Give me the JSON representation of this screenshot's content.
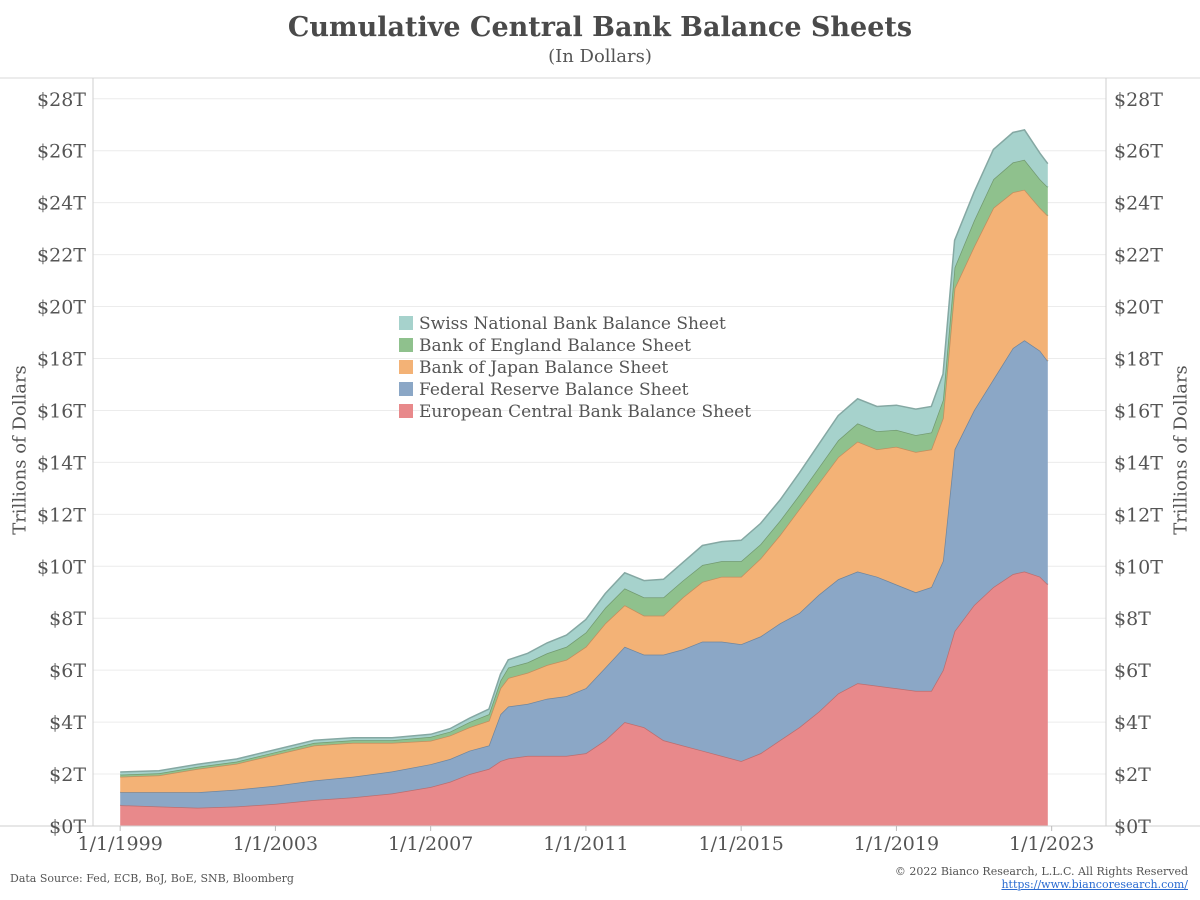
{
  "colors": {
    "ecb": "#e8898b",
    "fed": "#8ba7c6",
    "boj": "#f3b276",
    "boe": "#8fc18d",
    "snb": "#a6d2cc"
  },
  "chart_data": {
    "type": "area",
    "stacked": true,
    "title": "Cumulative Central Bank Balance Sheets",
    "subtitle": "(In Dollars)",
    "ylabel_left": "Trillions of Dollars",
    "ylabel_right": "Trillions of Dollars",
    "ylim": [
      0,
      28.8
    ],
    "yticks": [
      0,
      2,
      4,
      6,
      8,
      10,
      12,
      14,
      16,
      18,
      20,
      22,
      24,
      26,
      28
    ],
    "ytick_labels": [
      "$0T",
      "$2T",
      "$4T",
      "$6T",
      "$8T",
      "$10T",
      "$12T",
      "$14T",
      "$16T",
      "$18T",
      "$20T",
      "$22T",
      "$24T",
      "$26T",
      "$28T"
    ],
    "xlim": [
      1998.3,
      2024.4
    ],
    "xticks": [
      1999,
      2003,
      2007,
      2011,
      2015,
      2019,
      2023
    ],
    "xtick_labels": [
      "1/1/1999",
      "1/1/2003",
      "1/1/2007",
      "1/1/2011",
      "1/1/2015",
      "1/1/2019",
      "1/1/2023"
    ],
    "legend_position": "center",
    "legend_order": [
      "snb",
      "boe",
      "boj",
      "fed",
      "ecb"
    ],
    "series": [
      {
        "key": "ecb",
        "name": "European Central Bank Balance Sheet",
        "x": [
          1999.0,
          2000.0,
          2001.0,
          2002.0,
          2003.0,
          2004.0,
          2005.0,
          2006.0,
          2007.0,
          2007.5,
          2008.0,
          2008.5,
          2008.8,
          2009.0,
          2009.5,
          2010.0,
          2010.5,
          2011.0,
          2011.5,
          2012.0,
          2012.5,
          2013.0,
          2013.5,
          2014.0,
          2014.5,
          2015.0,
          2015.5,
          2016.0,
          2016.5,
          2017.0,
          2017.5,
          2018.0,
          2018.5,
          2019.0,
          2019.5,
          2019.9,
          2020.2,
          2020.5,
          2021.0,
          2021.5,
          2022.0,
          2022.3,
          2022.7,
          2022.9
        ],
        "values": [
          0.8,
          0.75,
          0.7,
          0.75,
          0.85,
          1.0,
          1.1,
          1.25,
          1.5,
          1.7,
          2.0,
          2.2,
          2.5,
          2.6,
          2.7,
          2.7,
          2.7,
          2.8,
          3.3,
          4.0,
          3.8,
          3.3,
          3.1,
          2.9,
          2.7,
          2.5,
          2.8,
          3.3,
          3.8,
          4.4,
          5.1,
          5.5,
          5.4,
          5.3,
          5.2,
          5.2,
          6.0,
          7.5,
          8.5,
          9.2,
          9.7,
          9.8,
          9.6,
          9.3
        ]
      },
      {
        "key": "fed",
        "name": "Federal Reserve Balance Sheet",
        "x": [
          1999.0,
          2000.0,
          2001.0,
          2002.0,
          2003.0,
          2004.0,
          2005.0,
          2006.0,
          2007.0,
          2007.5,
          2008.0,
          2008.5,
          2008.8,
          2009.0,
          2009.5,
          2010.0,
          2010.5,
          2011.0,
          2011.5,
          2012.0,
          2012.5,
          2013.0,
          2013.5,
          2014.0,
          2014.5,
          2015.0,
          2015.5,
          2016.0,
          2016.5,
          2017.0,
          2017.5,
          2018.0,
          2018.5,
          2019.0,
          2019.5,
          2019.9,
          2020.2,
          2020.5,
          2021.0,
          2021.5,
          2022.0,
          2022.3,
          2022.7,
          2022.9
        ],
        "values": [
          0.5,
          0.55,
          0.6,
          0.65,
          0.7,
          0.75,
          0.8,
          0.85,
          0.88,
          0.88,
          0.9,
          0.9,
          1.8,
          2.0,
          2.0,
          2.2,
          2.3,
          2.5,
          2.8,
          2.9,
          2.8,
          3.3,
          3.7,
          4.2,
          4.4,
          4.5,
          4.5,
          4.5,
          4.4,
          4.5,
          4.4,
          4.3,
          4.2,
          4.0,
          3.8,
          4.0,
          4.2,
          7.0,
          7.5,
          8.0,
          8.7,
          8.9,
          8.7,
          8.6
        ]
      },
      {
        "key": "boj",
        "name": "Bank of Japan Balance Sheet",
        "x": [
          1999.0,
          2000.0,
          2001.0,
          2002.0,
          2003.0,
          2004.0,
          2005.0,
          2006.0,
          2007.0,
          2007.5,
          2008.0,
          2008.5,
          2008.8,
          2009.0,
          2009.5,
          2010.0,
          2010.5,
          2011.0,
          2011.5,
          2012.0,
          2012.5,
          2013.0,
          2013.5,
          2014.0,
          2014.5,
          2015.0,
          2015.5,
          2016.0,
          2016.5,
          2017.0,
          2017.5,
          2018.0,
          2018.5,
          2019.0,
          2019.5,
          2019.9,
          2020.2,
          2020.5,
          2021.0,
          2021.5,
          2022.0,
          2022.3,
          2022.7,
          2022.9
        ],
        "values": [
          0.6,
          0.65,
          0.9,
          1.0,
          1.2,
          1.35,
          1.3,
          1.1,
          0.9,
          0.9,
          0.9,
          0.95,
          1.0,
          1.1,
          1.2,
          1.3,
          1.4,
          1.6,
          1.7,
          1.6,
          1.5,
          1.5,
          2.0,
          2.3,
          2.5,
          2.6,
          3.0,
          3.4,
          4.0,
          4.3,
          4.7,
          5.0,
          4.9,
          5.3,
          5.4,
          5.3,
          5.5,
          6.2,
          6.3,
          6.6,
          6.0,
          5.8,
          5.5,
          5.6
        ]
      },
      {
        "key": "boe",
        "name": "Bank of England Balance Sheet",
        "x": [
          1999.0,
          2000.0,
          2001.0,
          2002.0,
          2003.0,
          2004.0,
          2005.0,
          2006.0,
          2007.0,
          2007.5,
          2008.0,
          2008.5,
          2008.8,
          2009.0,
          2009.5,
          2010.0,
          2010.5,
          2011.0,
          2011.5,
          2012.0,
          2012.5,
          2013.0,
          2013.5,
          2014.0,
          2014.5,
          2015.0,
          2015.5,
          2016.0,
          2016.5,
          2017.0,
          2017.5,
          2018.0,
          2018.5,
          2019.0,
          2019.5,
          2019.9,
          2020.2,
          2020.5,
          2021.0,
          2021.5,
          2022.0,
          2022.3,
          2022.7,
          2022.9
        ],
        "values": [
          0.08,
          0.08,
          0.08,
          0.08,
          0.09,
          0.1,
          0.1,
          0.1,
          0.15,
          0.15,
          0.2,
          0.25,
          0.3,
          0.4,
          0.4,
          0.45,
          0.5,
          0.55,
          0.6,
          0.65,
          0.7,
          0.7,
          0.65,
          0.65,
          0.6,
          0.6,
          0.55,
          0.55,
          0.55,
          0.6,
          0.65,
          0.7,
          0.7,
          0.65,
          0.65,
          0.65,
          0.7,
          0.8,
          1.0,
          1.1,
          1.15,
          1.15,
          1.1,
          1.1
        ]
      },
      {
        "key": "snb",
        "name": "Swiss National Bank Balance Sheet",
        "x": [
          1999.0,
          2000.0,
          2001.0,
          2002.0,
          2003.0,
          2004.0,
          2005.0,
          2006.0,
          2007.0,
          2007.5,
          2008.0,
          2008.5,
          2008.8,
          2009.0,
          2009.5,
          2010.0,
          2010.5,
          2011.0,
          2011.5,
          2012.0,
          2012.5,
          2013.0,
          2013.5,
          2014.0,
          2014.5,
          2015.0,
          2015.5,
          2016.0,
          2016.5,
          2017.0,
          2017.5,
          2018.0,
          2018.5,
          2019.0,
          2019.5,
          2019.9,
          2020.2,
          2020.5,
          2021.0,
          2021.5,
          2022.0,
          2022.3,
          2022.7,
          2022.9
        ],
        "values": [
          0.1,
          0.1,
          0.1,
          0.1,
          0.1,
          0.1,
          0.1,
          0.1,
          0.1,
          0.12,
          0.15,
          0.2,
          0.25,
          0.3,
          0.35,
          0.4,
          0.45,
          0.5,
          0.55,
          0.6,
          0.65,
          0.7,
          0.7,
          0.75,
          0.75,
          0.8,
          0.8,
          0.8,
          0.85,
          0.9,
          0.95,
          0.95,
          0.95,
          0.95,
          1.0,
          1.0,
          1.0,
          1.05,
          1.1,
          1.15,
          1.15,
          1.15,
          1.0,
          0.9
        ]
      }
    ]
  },
  "footer": {
    "source": "Data Source: Fed, ECB, BoJ, BoE, SNB, Bloomberg",
    "copyright": "© 2022 Bianco Research, L.L.C. All Rights Reserved",
    "url": "https://www.biancoresearch.com/"
  }
}
